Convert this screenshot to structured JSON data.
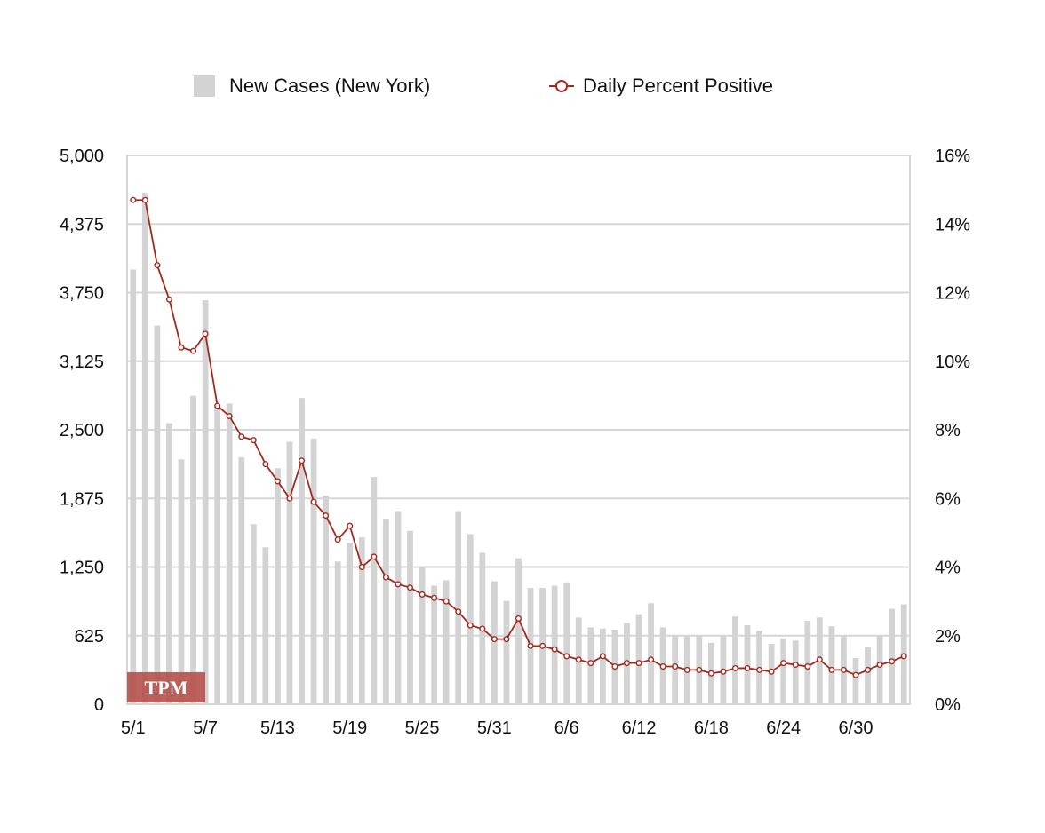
{
  "legend": {
    "bar_label": "New Cases (New York)",
    "line_label": "Daily Percent Positive"
  },
  "watermark": {
    "text": "TPM",
    "color": "#b5504a"
  },
  "colors": {
    "bar": "#d3d3d3",
    "line": "#a12a1e",
    "grid": "#d6d6d6"
  },
  "chart_data": {
    "type": "bar",
    "x_tick_labels": [
      "5/1",
      "5/7",
      "5/13",
      "5/19",
      "5/25",
      "5/31",
      "6/6",
      "6/12",
      "6/18",
      "6/24",
      "6/30"
    ],
    "x_tick_interval": 6,
    "y_left": {
      "ticks": [
        "5,000",
        "4,375",
        "3,750",
        "3,125",
        "2,500",
        "1,875",
        "1,250",
        "625",
        "0"
      ],
      "lim": [
        0,
        5000
      ]
    },
    "y_right": {
      "ticks": [
        "16%",
        "14%",
        "12%",
        "10%",
        "8%",
        "6%",
        "4%",
        "2%",
        "0%"
      ],
      "lim": [
        0,
        16
      ]
    },
    "grid": true,
    "legend_position": "top",
    "series": [
      {
        "name": "New Cases (New York)",
        "type": "bar",
        "axis": "left",
        "values": [
          3960,
          4660,
          3450,
          2560,
          2230,
          2810,
          3680,
          2730,
          2740,
          2250,
          1640,
          1430,
          2150,
          2390,
          2790,
          2420,
          1900,
          1300,
          1470,
          1520,
          2070,
          1690,
          1760,
          1580,
          1250,
          1080,
          1130,
          1760,
          1550,
          1380,
          1120,
          940,
          1330,
          1060,
          1060,
          1080,
          1110,
          790,
          700,
          690,
          680,
          740,
          820,
          920,
          700,
          630,
          620,
          630,
          560,
          620,
          800,
          720,
          670,
          550,
          600,
          580,
          760,
          790,
          710,
          620,
          420,
          520,
          630,
          870,
          910
        ]
      },
      {
        "name": "Daily Percent Positive",
        "type": "line",
        "axis": "right",
        "values": [
          14.7,
          14.7,
          12.8,
          11.8,
          10.4,
          10.3,
          10.8,
          8.7,
          8.4,
          7.8,
          7.7,
          7.0,
          6.5,
          6.0,
          7.1,
          5.9,
          5.5,
          4.8,
          5.2,
          4.0,
          4.3,
          3.7,
          3.5,
          3.4,
          3.2,
          3.1,
          3.0,
          2.7,
          2.3,
          2.2,
          1.9,
          1.9,
          2.5,
          1.7,
          1.7,
          1.6,
          1.4,
          1.3,
          1.2,
          1.4,
          1.1,
          1.2,
          1.2,
          1.3,
          1.1,
          1.1,
          1.0,
          1.0,
          0.9,
          0.95,
          1.05,
          1.05,
          1.0,
          0.95,
          1.2,
          1.15,
          1.1,
          1.3,
          1.0,
          1.0,
          0.85,
          1.0,
          1.15,
          1.25,
          1.4
        ]
      }
    ]
  }
}
